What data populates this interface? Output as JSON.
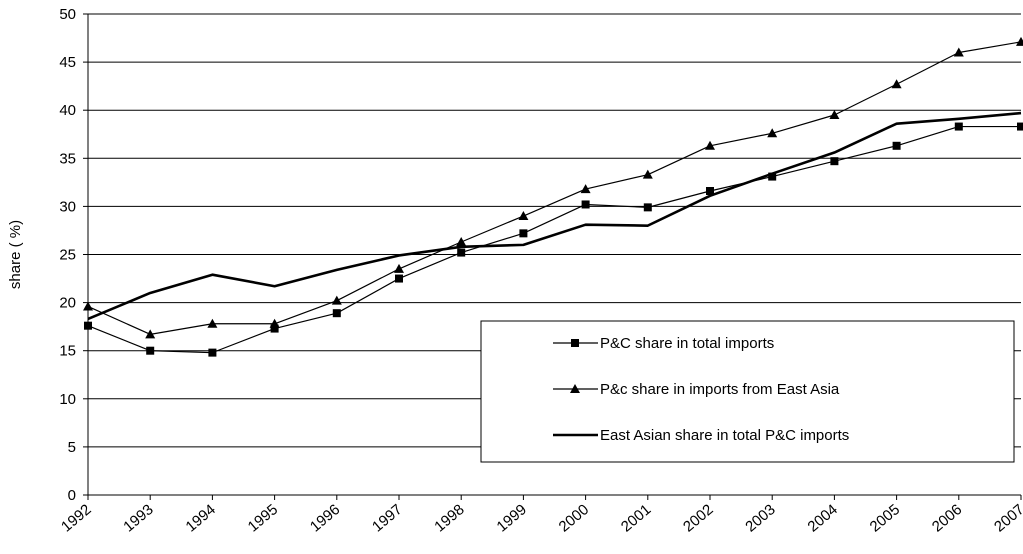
{
  "chart_data": {
    "type": "line",
    "title": "",
    "xlabel": "",
    "ylabel": "share ( %)",
    "ylim": [
      0,
      50
    ],
    "yticks": [
      0,
      5,
      10,
      15,
      20,
      25,
      30,
      35,
      40,
      45,
      50
    ],
    "grid": true,
    "legend_position": "bottom-right",
    "x": [
      "1992",
      "1993",
      "1994",
      "1995",
      "1996",
      "1997",
      "1998",
      "1999",
      "2000",
      "2001",
      "2002",
      "2003",
      "2004",
      "2005",
      "2006",
      "2007"
    ],
    "series": [
      {
        "name": "P&C share in total imports",
        "marker": "square",
        "values": [
          17.6,
          15.0,
          14.8,
          17.3,
          18.9,
          22.5,
          25.2,
          27.2,
          30.2,
          29.9,
          31.6,
          33.1,
          34.7,
          36.3,
          38.3,
          38.3
        ]
      },
      {
        "name": "P&c share in imports from East Asia",
        "marker": "triangle",
        "values": [
          19.6,
          16.7,
          17.8,
          17.8,
          20.2,
          23.5,
          26.3,
          29.0,
          31.8,
          33.3,
          36.3,
          37.6,
          39.5,
          42.7,
          46.0,
          47.1
        ]
      },
      {
        "name": "East Asian share in total P&C imports",
        "marker": "none",
        "bold": true,
        "values": [
          18.3,
          21.0,
          22.9,
          21.7,
          23.4,
          24.9,
          25.8,
          26.0,
          28.1,
          28.0,
          31.1,
          33.4,
          35.6,
          38.6,
          39.1,
          39.7
        ]
      }
    ]
  }
}
